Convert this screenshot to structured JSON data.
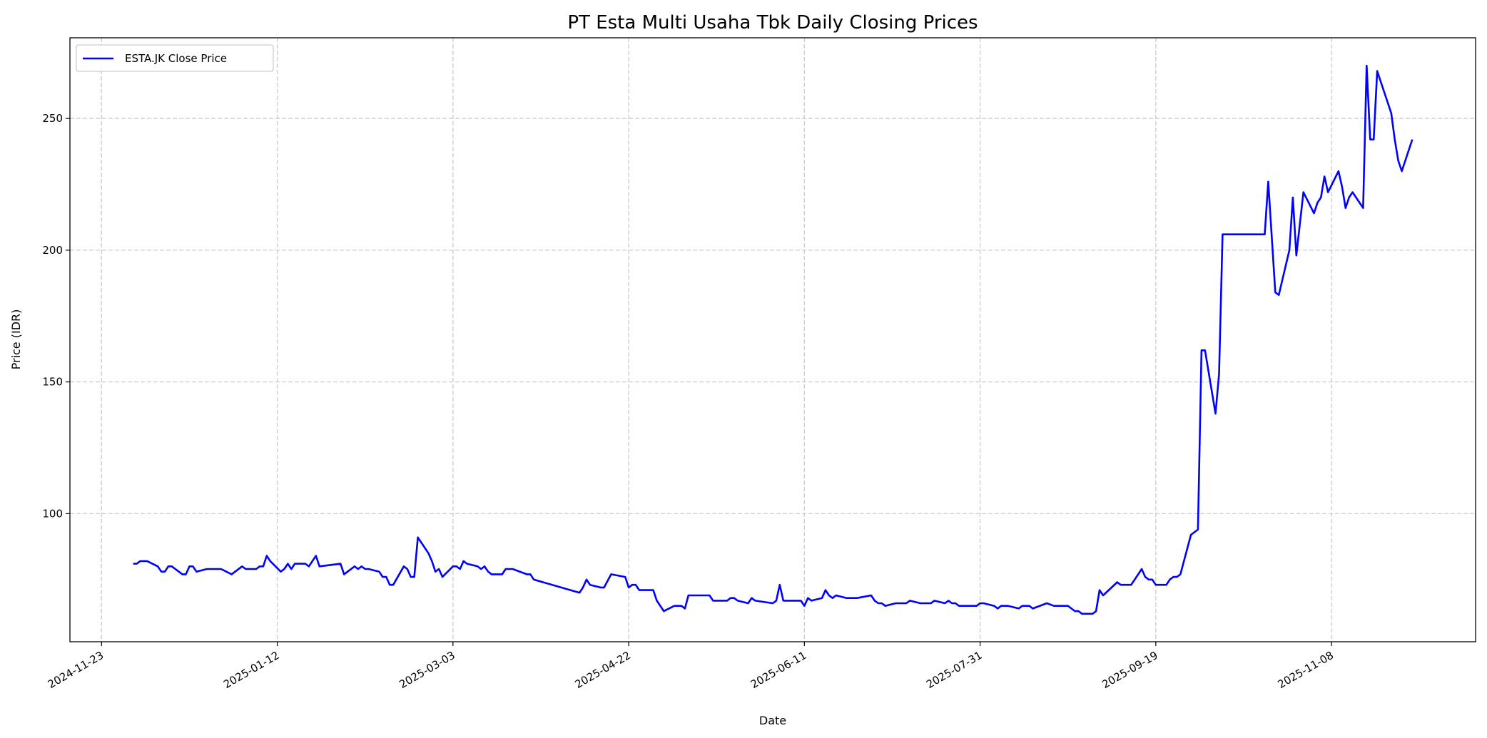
{
  "chart_data": {
    "type": "line",
    "title": "PT Esta Multi Usaha Tbk Daily Closing Prices",
    "xlabel": "Date",
    "ylabel": "Price (IDR)",
    "xlim": [
      "2024-11-14",
      "2025-12-19"
    ],
    "ylim": [
      51.4,
      280.6
    ],
    "x_ticks": [
      "2024-11-23",
      "2025-01-12",
      "2025-03-03",
      "2025-04-22",
      "2025-06-11",
      "2025-07-31",
      "2025-09-19",
      "2025-11-08"
    ],
    "y_ticks": [
      100,
      150,
      200,
      250
    ],
    "grid": true,
    "legend_position": "upper-left",
    "series": [
      {
        "name": "ESTA.JK Close Price",
        "color": "#0000ff",
        "points": [
          [
            "2024-12-02",
            81
          ],
          [
            "2024-12-03",
            81
          ],
          [
            "2024-12-04",
            82
          ],
          [
            "2024-12-06",
            82
          ],
          [
            "2024-12-09",
            80
          ],
          [
            "2024-12-10",
            78
          ],
          [
            "2024-12-11",
            78
          ],
          [
            "2024-12-12",
            80
          ],
          [
            "2024-12-13",
            80
          ],
          [
            "2024-12-16",
            77
          ],
          [
            "2024-12-17",
            77
          ],
          [
            "2024-12-18",
            80
          ],
          [
            "2024-12-19",
            80
          ],
          [
            "2024-12-20",
            78
          ],
          [
            "2024-12-23",
            79
          ],
          [
            "2024-12-27",
            79
          ],
          [
            "2024-12-30",
            77
          ],
          [
            "2025-01-02",
            80
          ],
          [
            "2025-01-03",
            79
          ],
          [
            "2025-01-06",
            79
          ],
          [
            "2025-01-07",
            80
          ],
          [
            "2025-01-08",
            80
          ],
          [
            "2025-01-09",
            84
          ],
          [
            "2025-01-10",
            82
          ],
          [
            "2025-01-13",
            78
          ],
          [
            "2025-01-14",
            79
          ],
          [
            "2025-01-15",
            81
          ],
          [
            "2025-01-16",
            79
          ],
          [
            "2025-01-17",
            81
          ],
          [
            "2025-01-20",
            81
          ],
          [
            "2025-01-21",
            80
          ],
          [
            "2025-01-23",
            84
          ],
          [
            "2025-01-24",
            80
          ],
          [
            "2025-01-30",
            81
          ],
          [
            "2025-01-31",
            77
          ],
          [
            "2025-02-03",
            80
          ],
          [
            "2025-02-04",
            79
          ],
          [
            "2025-02-05",
            80
          ],
          [
            "2025-02-06",
            79
          ],
          [
            "2025-02-07",
            79
          ],
          [
            "2025-02-10",
            78
          ],
          [
            "2025-02-11",
            76
          ],
          [
            "2025-02-12",
            76
          ],
          [
            "2025-02-13",
            73
          ],
          [
            "2025-02-14",
            73
          ],
          [
            "2025-02-17",
            80
          ],
          [
            "2025-02-18",
            79
          ],
          [
            "2025-02-19",
            76
          ],
          [
            "2025-02-20",
            76
          ],
          [
            "2025-02-21",
            91
          ],
          [
            "2025-02-24",
            85
          ],
          [
            "2025-02-25",
            82
          ],
          [
            "2025-02-26",
            78
          ],
          [
            "2025-02-27",
            79
          ],
          [
            "2025-02-28",
            76
          ],
          [
            "2025-03-03",
            80
          ],
          [
            "2025-03-04",
            80
          ],
          [
            "2025-03-05",
            79
          ],
          [
            "2025-03-06",
            82
          ],
          [
            "2025-03-07",
            81
          ],
          [
            "2025-03-10",
            80
          ],
          [
            "2025-03-11",
            79
          ],
          [
            "2025-03-12",
            80
          ],
          [
            "2025-03-13",
            78
          ],
          [
            "2025-03-14",
            77
          ],
          [
            "2025-03-17",
            77
          ],
          [
            "2025-03-18",
            79
          ],
          [
            "2025-03-20",
            79
          ],
          [
            "2025-03-24",
            77
          ],
          [
            "2025-03-25",
            77
          ],
          [
            "2025-03-26",
            75
          ],
          [
            "2025-04-08",
            70
          ],
          [
            "2025-04-09",
            72
          ],
          [
            "2025-04-10",
            75
          ],
          [
            "2025-04-11",
            73
          ],
          [
            "2025-04-14",
            72
          ],
          [
            "2025-04-15",
            72
          ],
          [
            "2025-04-17",
            77
          ],
          [
            "2025-04-21",
            76
          ],
          [
            "2025-04-22",
            72
          ],
          [
            "2025-04-23",
            73
          ],
          [
            "2025-04-24",
            73
          ],
          [
            "2025-04-25",
            71
          ],
          [
            "2025-04-29",
            71
          ],
          [
            "2025-04-30",
            67
          ],
          [
            "2025-05-02",
            63
          ],
          [
            "2025-05-05",
            65
          ],
          [
            "2025-05-07",
            65
          ],
          [
            "2025-05-08",
            64
          ],
          [
            "2025-05-09",
            69
          ],
          [
            "2025-05-15",
            69
          ],
          [
            "2025-05-16",
            67
          ],
          [
            "2025-05-20",
            67
          ],
          [
            "2025-05-21",
            68
          ],
          [
            "2025-05-22",
            68
          ],
          [
            "2025-05-23",
            67
          ],
          [
            "2025-05-26",
            66
          ],
          [
            "2025-05-27",
            68
          ],
          [
            "2025-05-28",
            67
          ],
          [
            "2025-06-02",
            66
          ],
          [
            "2025-06-03",
            67
          ],
          [
            "2025-06-04",
            73
          ],
          [
            "2025-06-05",
            67
          ],
          [
            "2025-06-10",
            67
          ],
          [
            "2025-06-11",
            65
          ],
          [
            "2025-06-12",
            68
          ],
          [
            "2025-06-13",
            67
          ],
          [
            "2025-06-16",
            68
          ],
          [
            "2025-06-17",
            71
          ],
          [
            "2025-06-18",
            69
          ],
          [
            "2025-06-19",
            68
          ],
          [
            "2025-06-20",
            69
          ],
          [
            "2025-06-23",
            68
          ],
          [
            "2025-06-26",
            68
          ],
          [
            "2025-06-30",
            69
          ],
          [
            "2025-07-01",
            67
          ],
          [
            "2025-07-02",
            66
          ],
          [
            "2025-07-03",
            66
          ],
          [
            "2025-07-04",
            65
          ],
          [
            "2025-07-07",
            66
          ],
          [
            "2025-07-10",
            66
          ],
          [
            "2025-07-11",
            67
          ],
          [
            "2025-07-14",
            66
          ],
          [
            "2025-07-17",
            66
          ],
          [
            "2025-07-18",
            67
          ],
          [
            "2025-07-21",
            66
          ],
          [
            "2025-07-22",
            67
          ],
          [
            "2025-07-23",
            66
          ],
          [
            "2025-07-24",
            66
          ],
          [
            "2025-07-25",
            65
          ],
          [
            "2025-07-30",
            65
          ],
          [
            "2025-07-31",
            66
          ],
          [
            "2025-08-01",
            66
          ],
          [
            "2025-08-04",
            65
          ],
          [
            "2025-08-05",
            64
          ],
          [
            "2025-08-06",
            65
          ],
          [
            "2025-08-08",
            65
          ],
          [
            "2025-08-11",
            64
          ],
          [
            "2025-08-12",
            65
          ],
          [
            "2025-08-14",
            65
          ],
          [
            "2025-08-15",
            64
          ],
          [
            "2025-08-19",
            66
          ],
          [
            "2025-08-21",
            65
          ],
          [
            "2025-08-25",
            65
          ],
          [
            "2025-08-27",
            63
          ],
          [
            "2025-08-28",
            63
          ],
          [
            "2025-08-29",
            62
          ],
          [
            "2025-09-01",
            62
          ],
          [
            "2025-09-02",
            63
          ],
          [
            "2025-09-03",
            71
          ],
          [
            "2025-09-04",
            69
          ],
          [
            "2025-09-08",
            74
          ],
          [
            "2025-09-09",
            73
          ],
          [
            "2025-09-12",
            73
          ],
          [
            "2025-09-15",
            79
          ],
          [
            "2025-09-16",
            76
          ],
          [
            "2025-09-17",
            75
          ],
          [
            "2025-09-18",
            75
          ],
          [
            "2025-09-19",
            73
          ],
          [
            "2025-09-22",
            73
          ],
          [
            "2025-09-23",
            75
          ],
          [
            "2025-09-24",
            76
          ],
          [
            "2025-09-25",
            76
          ],
          [
            "2025-09-26",
            77
          ],
          [
            "2025-09-29",
            92
          ],
          [
            "2025-10-01",
            94
          ],
          [
            "2025-10-02",
            162
          ],
          [
            "2025-10-03",
            162
          ],
          [
            "2025-10-06",
            138
          ],
          [
            "2025-10-07",
            153
          ],
          [
            "2025-10-08",
            206
          ],
          [
            "2025-10-20",
            206
          ],
          [
            "2025-10-21",
            226
          ],
          [
            "2025-10-23",
            184
          ],
          [
            "2025-10-24",
            183
          ],
          [
            "2025-10-27",
            200
          ],
          [
            "2025-10-28",
            220
          ],
          [
            "2025-10-29",
            198
          ],
          [
            "2025-10-31",
            222
          ],
          [
            "2025-11-03",
            214
          ],
          [
            "2025-11-04",
            218
          ],
          [
            "2025-11-05",
            220
          ],
          [
            "2025-11-06",
            228
          ],
          [
            "2025-11-07",
            222
          ],
          [
            "2025-11-10",
            230
          ],
          [
            "2025-11-11",
            224
          ],
          [
            "2025-11-12",
            216
          ],
          [
            "2025-11-13",
            220
          ],
          [
            "2025-11-14",
            222
          ],
          [
            "2025-11-17",
            216
          ],
          [
            "2025-11-18",
            270
          ],
          [
            "2025-11-19",
            242
          ],
          [
            "2025-11-20",
            242
          ],
          [
            "2025-11-21",
            268
          ],
          [
            "2025-11-25",
            252
          ],
          [
            "2025-11-26",
            242
          ],
          [
            "2025-11-27",
            234
          ],
          [
            "2025-11-28",
            230
          ],
          [
            "2025-12-01",
            242
          ]
        ]
      }
    ]
  }
}
